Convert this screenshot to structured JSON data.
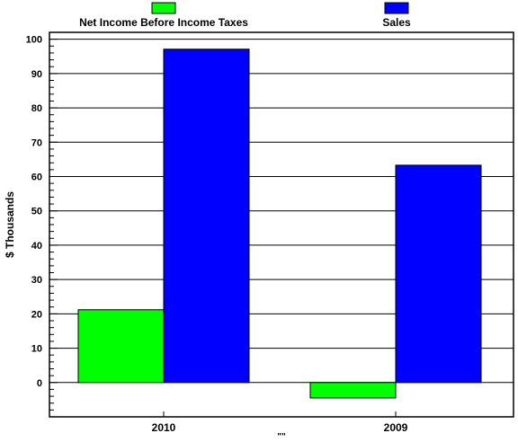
{
  "chart_data": {
    "type": "bar",
    "categories": [
      "2010",
      "2009"
    ],
    "series": [
      {
        "name": "Net Income Before Income Taxes",
        "values": [
          21.2,
          -4.5
        ],
        "color": "#00ff00"
      },
      {
        "name": "Sales",
        "values": [
          97.1,
          63.3
        ],
        "color": "#0000ff"
      }
    ],
    "title": "",
    "xlabel": "\"\"",
    "ylabel": "$ Thousands",
    "ylim": [
      -10,
      102
    ],
    "yticks": [
      0,
      10,
      20,
      30,
      40,
      50,
      60,
      70,
      80,
      90,
      100
    ],
    "grid": true,
    "legend": "top"
  }
}
